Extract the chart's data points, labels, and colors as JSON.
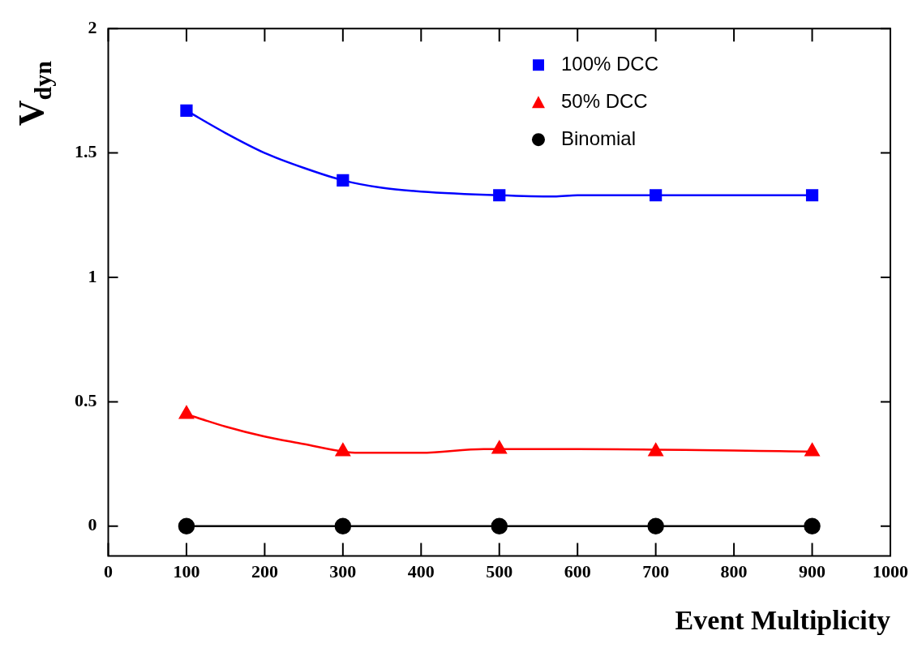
{
  "chart_data": {
    "type": "scatter",
    "xlabel": "Event Multiplicity",
    "ylabel": "V$_{dyn}$",
    "x": [
      100,
      300,
      500,
      700,
      900
    ],
    "xlim": [
      0,
      1000
    ],
    "xticks": [
      0,
      100,
      200,
      300,
      400,
      500,
      600,
      700,
      800,
      900,
      1000
    ],
    "ylim": [
      -0.12,
      2
    ],
    "yticks": [
      0,
      0.5,
      1,
      1.5,
      2
    ],
    "grid": false,
    "legend": "top right",
    "series": [
      {
        "name": "100% DCC",
        "color": "#0000ff",
        "marker": "square",
        "values": [
          1.67,
          1.39,
          1.33,
          1.33,
          1.33
        ]
      },
      {
        "name": "50% DCC",
        "color": "#ff0000",
        "marker": "triangle",
        "values": [
          0.45,
          0.3,
          0.31,
          0.3,
          0.3
        ]
      },
      {
        "name": "Binomial",
        "color": "#000000",
        "marker": "circle",
        "values": [
          0,
          0,
          0,
          0,
          0
        ]
      },
      {
        "type": "line",
        "color": "#0000ff",
        "marker": "none",
        "x": [
          100,
          150,
          200,
          250,
          300,
          350,
          400,
          500,
          570,
          600,
          900
        ],
        "values": [
          1.67,
          1.58,
          1.5,
          1.44,
          1.39,
          1.36,
          1.345,
          1.33,
          1.325,
          1.33,
          1.33
        ]
      },
      {
        "type": "line",
        "color": "#ff0000",
        "marker": "none",
        "x": [
          100,
          150,
          200,
          250,
          300,
          320,
          400,
          480,
          600,
          900
        ],
        "values": [
          0.45,
          0.4,
          0.36,
          0.33,
          0.3,
          0.295,
          0.295,
          0.31,
          0.31,
          0.3
        ]
      },
      {
        "type": "line",
        "color": "#000000",
        "marker": "none",
        "x": [
          100,
          900
        ],
        "values": [
          0,
          0
        ]
      }
    ]
  }
}
